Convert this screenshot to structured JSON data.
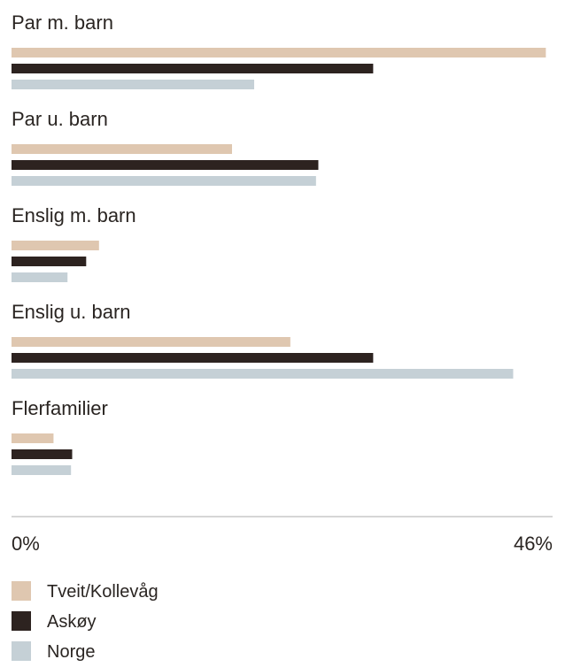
{
  "chart_data": {
    "type": "bar",
    "orientation": "horizontal",
    "categories": [
      "Par m. barn",
      "Par u. barn",
      "Enslig m. barn",
      "Enslig u. barn",
      "Flerfamilier"
    ],
    "series": [
      {
        "name": "Tveit/Kollevåg",
        "color": "#dfc7b0",
        "values": [
          45.8,
          18.9,
          7.5,
          23.9,
          3.6
        ]
      },
      {
        "name": "Askøy",
        "color": "#2d2320",
        "values": [
          31.0,
          26.3,
          6.4,
          31.0,
          5.2
        ]
      },
      {
        "name": "Norge",
        "color": "#c5d0d6",
        "values": [
          20.8,
          26.1,
          4.8,
          43.0,
          5.1
        ]
      }
    ],
    "xlim": [
      0,
      46
    ],
    "tick_labels": {
      "min": "0%",
      "max": "46%"
    },
    "axis_color": "#c8c8c8",
    "legend_position": "bottom",
    "grid": false
  }
}
